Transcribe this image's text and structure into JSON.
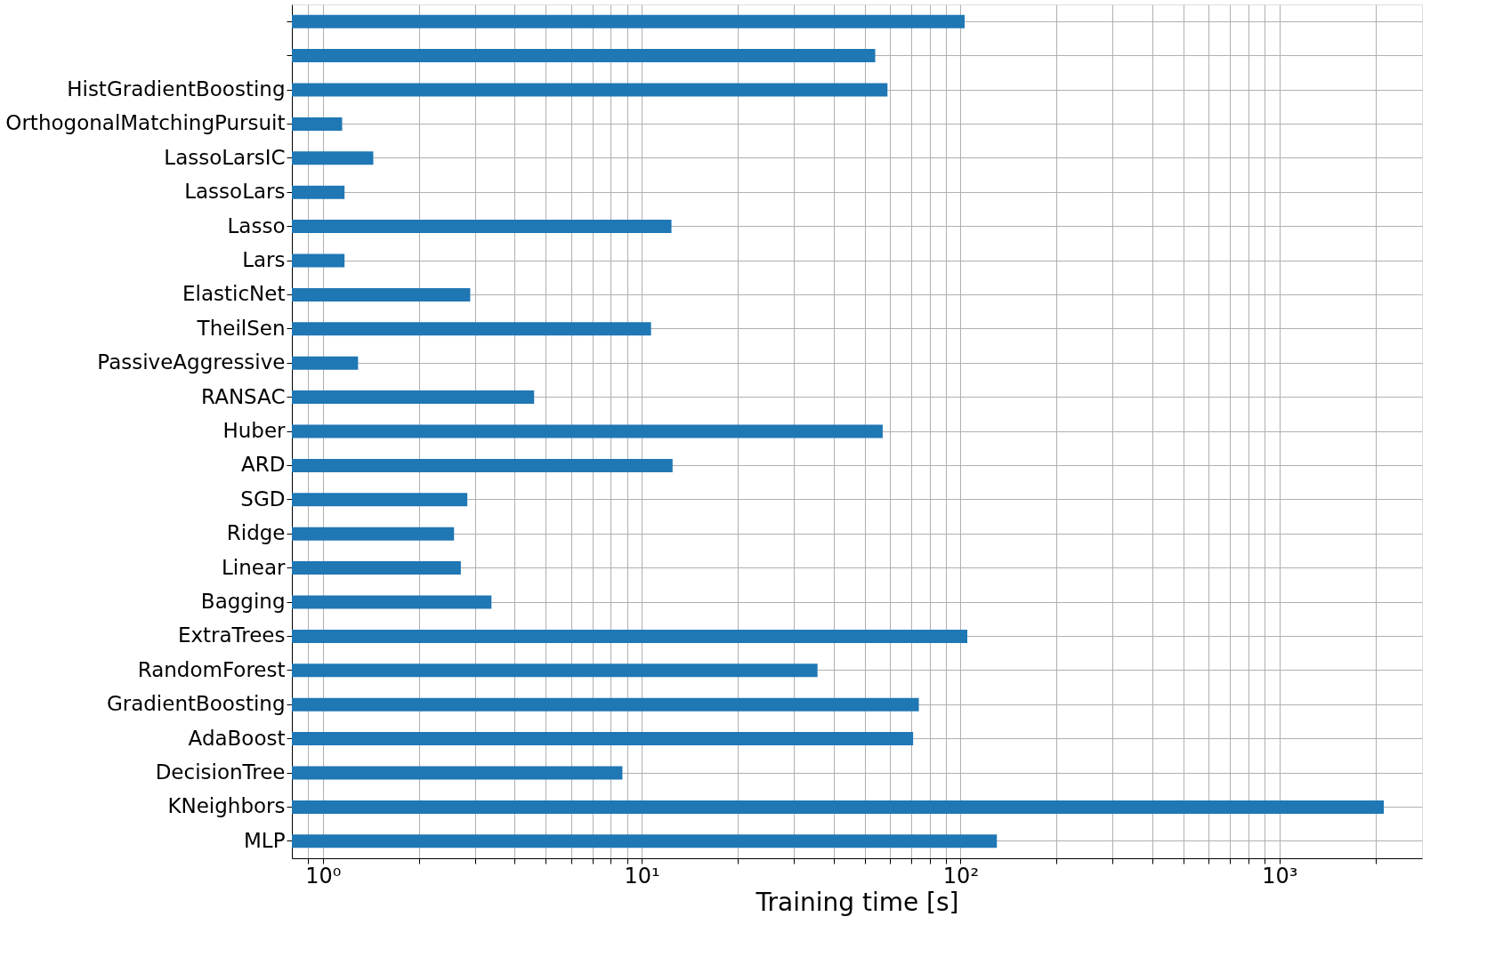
{
  "chart_data": {
    "type": "bar",
    "orientation": "horizontal",
    "xlabel": "Training time [s]",
    "log": "x",
    "grid": true,
    "categories": [
      null,
      null,
      "HistGradientBoosting",
      "OrthogonalMatchingPursuit",
      "LassoLarsIC",
      "LassoLars",
      "Lasso",
      "Lars",
      "ElasticNet",
      "TheilSen",
      "PassiveAggressive",
      "RANSAC",
      "Huber",
      "ARD",
      "SGD",
      "Ridge",
      "Linear",
      "Bagging",
      "ExtraTrees",
      "RandomForest",
      "GradientBoosting",
      "AdaBoost",
      "DecisionTree",
      "KNeighbors",
      "MLP"
    ],
    "values": [
      103,
      54,
      59,
      1.15,
      1.44,
      1.17,
      12.4,
      1.17,
      2.9,
      10.7,
      1.29,
      4.6,
      57,
      12.5,
      2.84,
      2.58,
      2.71,
      3.38,
      105,
      35.6,
      74,
      71,
      8.7,
      2125,
      130
    ],
    "color": "#1f77b4",
    "xlim": [
      0.8,
      2800
    ],
    "xticks": [
      {
        "value": 0.9,
        "label": null
      },
      {
        "value": 1,
        "label": "10⁰"
      },
      {
        "value": 2,
        "label": null
      },
      {
        "value": 3,
        "label": null
      },
      {
        "value": 4,
        "label": null
      },
      {
        "value": 5,
        "label": null
      },
      {
        "value": 6,
        "label": null
      },
      {
        "value": 7,
        "label": null
      },
      {
        "value": 8,
        "label": null
      },
      {
        "value": 9,
        "label": null
      },
      {
        "value": 10,
        "label": "10¹"
      },
      {
        "value": 20,
        "label": null
      },
      {
        "value": 30,
        "label": null
      },
      {
        "value": 40,
        "label": null
      },
      {
        "value": 50,
        "label": null
      },
      {
        "value": 60,
        "label": null
      },
      {
        "value": 70,
        "label": null
      },
      {
        "value": 80,
        "label": null
      },
      {
        "value": 90,
        "label": null
      },
      {
        "value": 100,
        "label": "10²"
      },
      {
        "value": 200,
        "label": null
      },
      {
        "value": 300,
        "label": null
      },
      {
        "value": 400,
        "label": null
      },
      {
        "value": 500,
        "label": null
      },
      {
        "value": 600,
        "label": null
      },
      {
        "value": 700,
        "label": null
      },
      {
        "value": 800,
        "label": null
      },
      {
        "value": 900,
        "label": null
      },
      {
        "value": 1000,
        "label": "10³"
      },
      {
        "value": 2000,
        "label": null
      }
    ]
  }
}
